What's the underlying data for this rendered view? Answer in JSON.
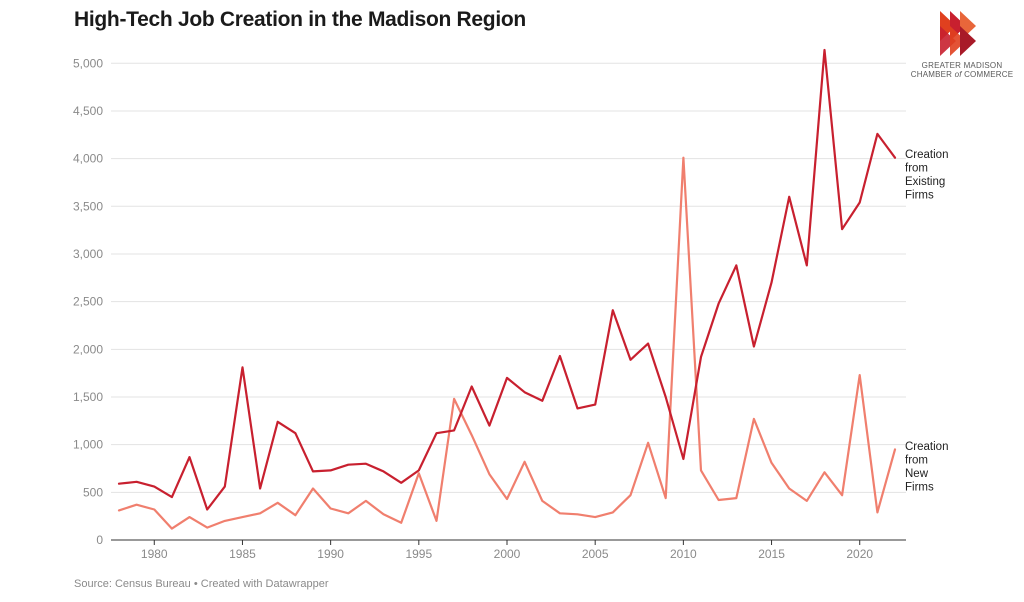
{
  "header": {
    "title": "High-Tech Job Creation in the Madison Region"
  },
  "footer": {
    "source": "Source: Census Bureau • Created with Datawrapper"
  },
  "logo": {
    "line1": "GREATER MADISON",
    "line2_prefix": "CHAMBER ",
    "line2_italic": "of",
    "line2_suffix": " COMMERCE",
    "colors": [
      "#c8202f",
      "#e0401f",
      "#e8663a"
    ]
  },
  "chart_data": {
    "type": "line",
    "title": "High-Tech Job Creation in the Madison Region",
    "xlabel": "",
    "ylabel": "",
    "xlim": [
      1978,
      2022
    ],
    "ylim": [
      0,
      5200
    ],
    "grid": true,
    "y_ticks": [
      0,
      500,
      1000,
      1500,
      2000,
      2500,
      3000,
      3500,
      4000,
      4500,
      5000
    ],
    "y_tick_labels": [
      "0",
      "500",
      "1,000",
      "1,500",
      "2,000",
      "2,500",
      "3,000",
      "3,500",
      "4,000",
      "4,500",
      "5,000"
    ],
    "x_ticks": [
      1980,
      1985,
      1990,
      1995,
      2000,
      2005,
      2010,
      2015,
      2020
    ],
    "x_tick_labels": [
      "1980",
      "1985",
      "1990",
      "1995",
      "2000",
      "2005",
      "2010",
      "2015",
      "2020"
    ],
    "x": [
      1978,
      1979,
      1980,
      1981,
      1982,
      1983,
      1984,
      1985,
      1986,
      1987,
      1988,
      1989,
      1990,
      1991,
      1992,
      1993,
      1994,
      1995,
      1996,
      1997,
      1998,
      1999,
      2000,
      2001,
      2002,
      2003,
      2004,
      2005,
      2006,
      2007,
      2008,
      2009,
      2010,
      2011,
      2012,
      2013,
      2014,
      2015,
      2016,
      2017,
      2018,
      2019,
      2020,
      2021,
      2022
    ],
    "series": [
      {
        "name": "Creation from Existing Firms",
        "label_lines": [
          "Creation",
          "from",
          "Existing",
          "Firms"
        ],
        "color": "#c8202f",
        "values": [
          590,
          610,
          560,
          450,
          870,
          320,
          560,
          1810,
          540,
          1240,
          1120,
          720,
          730,
          790,
          800,
          720,
          600,
          730,
          1120,
          1150,
          1610,
          1200,
          1700,
          1550,
          1460,
          1930,
          1380,
          1420,
          2410,
          1890,
          2060,
          1500,
          850,
          1920,
          2480,
          2880,
          2030,
          2700,
          3600,
          2880,
          5140,
          3260,
          3540,
          4260,
          4010
        ]
      },
      {
        "name": "Creation from New Firms",
        "label_lines": [
          "Creation",
          "from",
          "New",
          "Firms"
        ],
        "color": "#f07f6e",
        "values": [
          310,
          370,
          320,
          120,
          240,
          130,
          200,
          240,
          280,
          390,
          260,
          540,
          330,
          280,
          410,
          270,
          180,
          700,
          200,
          1480,
          1100,
          690,
          430,
          820,
          410,
          280,
          270,
          240,
          290,
          470,
          1020,
          440,
          4010,
          730,
          420,
          440,
          1270,
          810,
          540,
          410,
          710,
          470,
          1730,
          290,
          950
        ]
      }
    ]
  }
}
